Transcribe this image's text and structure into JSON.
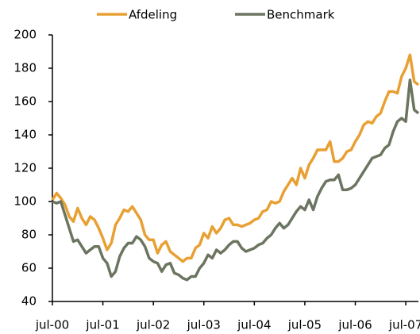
{
  "chart_data": {
    "type": "line",
    "categories": [
      "jul-00",
      null,
      null,
      null,
      null,
      null,
      null,
      null,
      null,
      null,
      null,
      null,
      "jul-01",
      null,
      null,
      null,
      null,
      null,
      null,
      null,
      null,
      null,
      null,
      null,
      "jul-02",
      null,
      null,
      null,
      null,
      null,
      null,
      null,
      null,
      null,
      null,
      null,
      "jul-03",
      null,
      null,
      null,
      null,
      null,
      null,
      null,
      null,
      null,
      null,
      null,
      "jul-04",
      null,
      null,
      null,
      null,
      null,
      null,
      null,
      null,
      null,
      null,
      null,
      "jul-05",
      null,
      null,
      null,
      null,
      null,
      null,
      null,
      null,
      null,
      null,
      null,
      "jul-06",
      null,
      null,
      null,
      null,
      null,
      null,
      null,
      null,
      null,
      null,
      null,
      "jul-07",
      null,
      null,
      null
    ],
    "series": [
      {
        "name": "Afdeling",
        "color": "#e8a033",
        "values": [
          101,
          105,
          102,
          98,
          91,
          88,
          96,
          90,
          86,
          91,
          89,
          84,
          78,
          71,
          75,
          86,
          90,
          95,
          94,
          97,
          93,
          89,
          80,
          77,
          77,
          69,
          74,
          76,
          70,
          68,
          66,
          64,
          66,
          66,
          72,
          74,
          81,
          78,
          85,
          81,
          84,
          89,
          90,
          86,
          86,
          85,
          86,
          87,
          89,
          90,
          94,
          95,
          100,
          99,
          100,
          106,
          110,
          114,
          110,
          120,
          114,
          122,
          126,
          131,
          131,
          131,
          136,
          124,
          124,
          126,
          130,
          131,
          136,
          140,
          146,
          148,
          147,
          151,
          153,
          160,
          166,
          166,
          165,
          175,
          180,
          188,
          172,
          170
        ]
      },
      {
        "name": "Benchmark",
        "color": "#6b7560",
        "values": [
          100,
          99,
          100,
          92,
          84,
          76,
          77,
          73,
          69,
          71,
          73,
          73,
          66,
          63,
          55,
          58,
          67,
          72,
          75,
          75,
          79,
          77,
          73,
          66,
          64,
          63,
          58,
          62,
          63,
          57,
          56,
          54,
          53,
          55,
          55,
          60,
          63,
          68,
          66,
          71,
          69,
          71,
          74,
          76,
          76,
          72,
          70,
          71,
          72,
          74,
          75,
          78,
          80,
          84,
          87,
          84,
          86,
          90,
          94,
          97,
          95,
          101,
          95,
          103,
          108,
          112,
          113,
          113,
          116,
          107,
          107,
          108,
          110,
          114,
          118,
          122,
          126,
          127,
          128,
          132,
          134,
          142,
          148,
          150,
          148,
          173,
          155,
          153
        ]
      }
    ],
    "ylim": [
      40,
      200
    ],
    "yticks": [
      40,
      60,
      80,
      100,
      120,
      140,
      160,
      180,
      200
    ],
    "grid": false,
    "legend": "top"
  }
}
